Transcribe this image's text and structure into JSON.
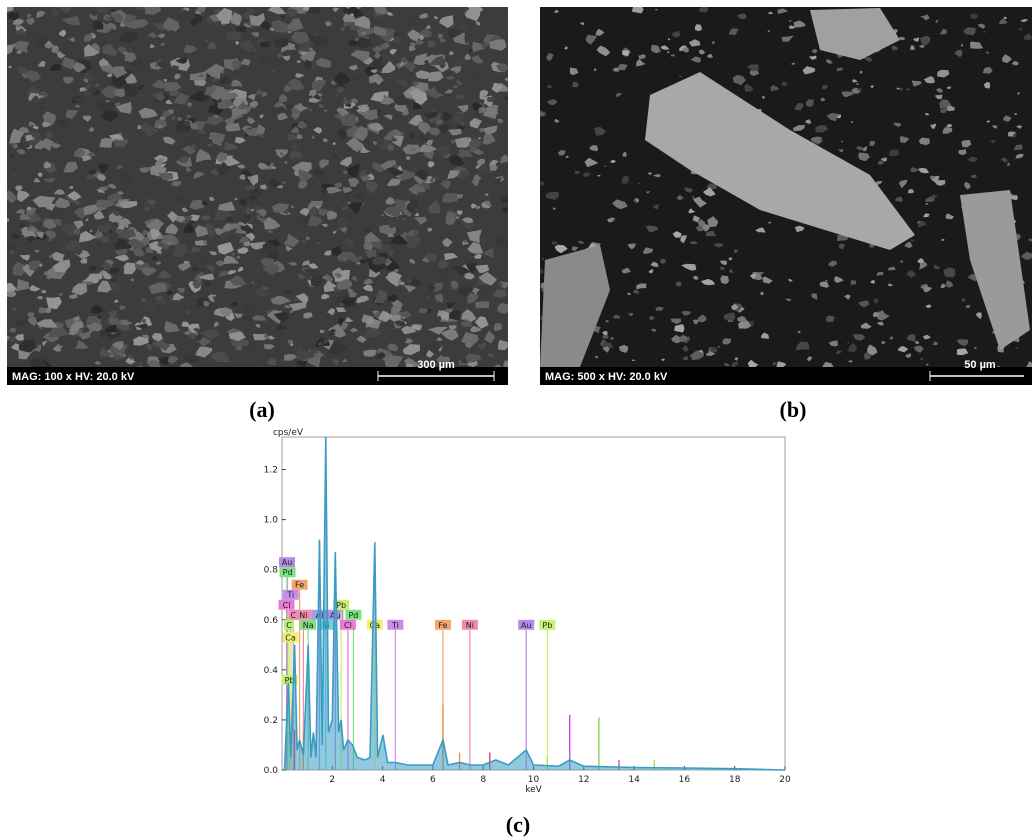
{
  "panels": [
    {
      "label": "(a)",
      "info": "MAG: 100 x  HV: 20.0 kV",
      "scale_bar": "300 µm"
    },
    {
      "label": "(b)",
      "info": "MAG: 500 x  HV: 20.0 kV",
      "scale_bar": "50 µm"
    }
  ],
  "chart_data": {
    "type": "line",
    "label": "(c)",
    "x_label": "keV",
    "y_label": "cps/eV",
    "xlim": [
      0,
      20
    ],
    "ylim": [
      0,
      1.33
    ],
    "xticks": [
      2,
      4,
      6,
      8,
      10,
      12,
      14,
      16,
      18,
      20
    ],
    "yticks": [
      {
        "value": 0,
        "label": "0.0"
      },
      {
        "value": 0.2,
        "label": "0.2"
      },
      {
        "value": 0.4,
        "label": "0.4"
      },
      {
        "value": 0.6,
        "label": "0.6"
      },
      {
        "value": 0.8,
        "label": "0.8"
      },
      {
        "value": 1.0,
        "label": "1.0"
      },
      {
        "value": 1.2,
        "label": "1.2"
      }
    ],
    "spectrum": {
      "color": "#3a9cc4",
      "x": [
        0.1,
        0.25,
        0.35,
        0.5,
        0.6,
        0.7,
        0.85,
        1.04,
        1.15,
        1.25,
        1.35,
        1.49,
        1.6,
        1.74,
        1.85,
        2.0,
        2.12,
        2.25,
        2.35,
        2.45,
        2.62,
        2.8,
        3.0,
        3.3,
        3.5,
        3.69,
        3.8,
        4.01,
        4.2,
        4.5,
        5,
        6,
        6.4,
        6.6,
        7.06,
        7.5,
        8,
        8.5,
        9,
        9.71,
        10,
        11,
        11.44,
        12,
        14,
        16,
        18,
        20
      ],
      "values": [
        0,
        0.35,
        0.05,
        0.5,
        0.08,
        0.12,
        0.06,
        0.5,
        0.05,
        0.15,
        0.05,
        0.92,
        0.1,
        1.33,
        0.15,
        0.2,
        0.87,
        0.15,
        0.2,
        0.08,
        0.12,
        0.1,
        0.05,
        0.04,
        0.05,
        0.91,
        0.05,
        0.14,
        0.03,
        0.03,
        0.02,
        0.02,
        0.12,
        0.02,
        0.03,
        0.02,
        0.02,
        0.04,
        0.02,
        0.08,
        0.02,
        0.015,
        0.04,
        0.015,
        0.01,
        0.008,
        0.005,
        0
      ]
    },
    "spikes": [
      {
        "x": 6.4,
        "value": 0.26,
        "color": "#f08a3a"
      },
      {
        "x": 7.06,
        "value": 0.07,
        "color": "#f08a3a"
      },
      {
        "x": 8.26,
        "value": 0.07,
        "color": "#e0306a"
      },
      {
        "x": 10.55,
        "value": 0.05,
        "color": "#9ee04a"
      },
      {
        "x": 11.44,
        "value": 0.22,
        "color": "#c040d0"
      },
      {
        "x": 12.6,
        "value": 0.21,
        "color": "#7ed040"
      },
      {
        "x": 13.4,
        "value": 0.04,
        "color": "#c040d0"
      },
      {
        "x": 14.8,
        "value": 0.04,
        "color": "#9ee04a"
      },
      {
        "x": 0.5,
        "value": 0.16,
        "color": "#e0306a"
      },
      {
        "x": 0.85,
        "value": 0.15,
        "color": "#f08a3a"
      }
    ],
    "elements": [
      {
        "label": "Au",
        "x": 0.2,
        "y": 0.81,
        "color": "#b58ae8"
      },
      {
        "label": "Pd",
        "x": 0.22,
        "y": 0.77,
        "color": "#7de37d"
      },
      {
        "label": "Fe",
        "x": 0.7,
        "y": 0.72,
        "color": "#f4a56b"
      },
      {
        "label": "Ti",
        "x": 0.35,
        "y": 0.68,
        "color": "#c98ce8"
      },
      {
        "label": "Cl",
        "x": 0.18,
        "y": 0.64,
        "color": "#e87ad8"
      },
      {
        "label": "C",
        "x": 0.45,
        "y": 0.6,
        "color": "#f08ab0"
      },
      {
        "label": "Ni",
        "x": 0.85,
        "y": 0.6,
        "color": "#f08ab0"
      },
      {
        "label": "Al",
        "x": 1.49,
        "y": 0.6,
        "color": "#a89ae8"
      },
      {
        "label": "Au",
        "x": 2.12,
        "y": 0.6,
        "color": "#b58ae8"
      },
      {
        "label": "Pb",
        "x": 2.35,
        "y": 0.64,
        "color": "#c8f070"
      },
      {
        "label": "Pd",
        "x": 2.84,
        "y": 0.6,
        "color": "#7de37d"
      },
      {
        "label": "C",
        "x": 0.28,
        "y": 0.56,
        "color": "#b8f070"
      },
      {
        "label": "Na",
        "x": 1.04,
        "y": 0.56,
        "color": "#80e080"
      },
      {
        "label": "Si",
        "x": 1.74,
        "y": 0.56,
        "color": "#70d0e0"
      },
      {
        "label": "Cl",
        "x": 2.62,
        "y": 0.56,
        "color": "#e87ad8"
      },
      {
        "label": "Ca",
        "x": 3.69,
        "y": 0.56,
        "color": "#f0f070"
      },
      {
        "label": "Ti",
        "x": 4.51,
        "y": 0.56,
        "color": "#c98ce8"
      },
      {
        "label": "Fe",
        "x": 6.4,
        "y": 0.56,
        "color": "#f4a56b"
      },
      {
        "label": "Ni",
        "x": 7.47,
        "y": 0.56,
        "color": "#f08ab0"
      },
      {
        "label": "Au",
        "x": 9.71,
        "y": 0.56,
        "color": "#b58ae8"
      },
      {
        "label": "Pb",
        "x": 10.55,
        "y": 0.56,
        "color": "#c8f070"
      },
      {
        "label": "Ca",
        "x": 0.34,
        "y": 0.51,
        "color": "#f0f070"
      },
      {
        "label": "Pb",
        "x": 0.3,
        "y": 0.34,
        "color": "#c8f070"
      }
    ]
  }
}
